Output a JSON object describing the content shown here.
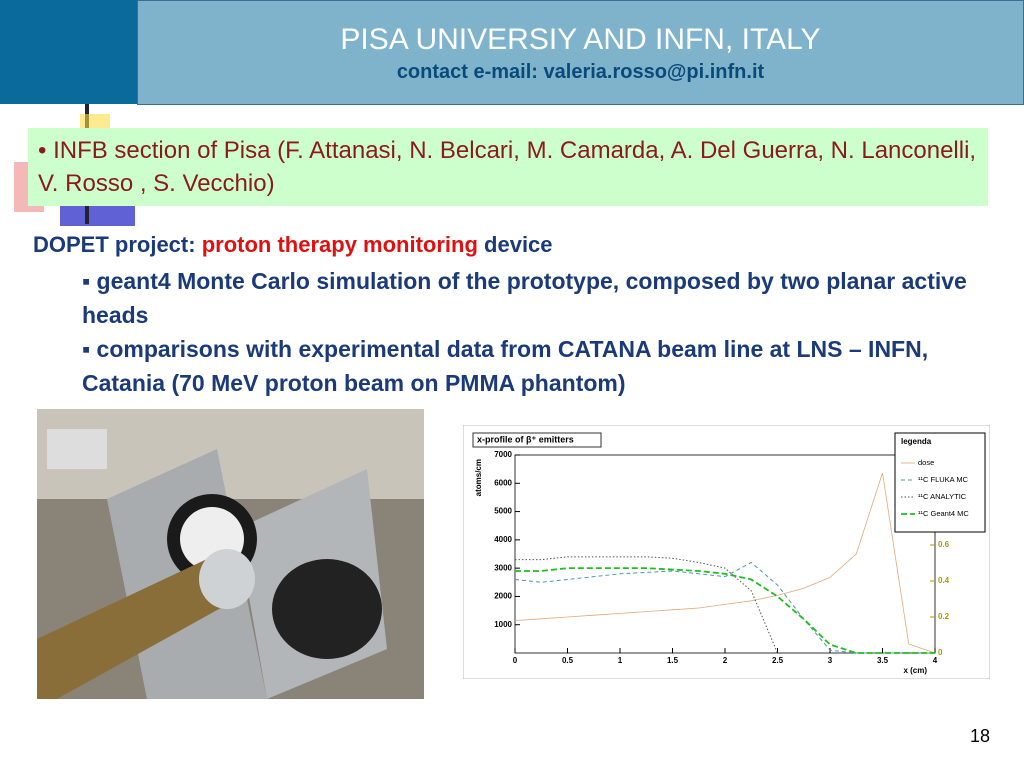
{
  "header": {
    "title": "PISA UNIVERSIY AND INFN, ITALY",
    "contact": "contact e-mail: valeria.rosso@pi.infn.it"
  },
  "box": {
    "text": "• INFB section of Pisa (F. Attanasi, N. Belcari, M. Camarda, A. Del Guerra, N. Lanconelli, V. Rosso , S. Vecchio)"
  },
  "project": {
    "lead": "DOPET project:",
    "highlight": "proton therapy monitoring",
    "tail": "device"
  },
  "bullets": [
    "▪ geant4 Monte Carlo simulation of the prototype, composed by two planar active heads",
    "▪ comparisons with experimental data from CATANA beam line at LNS – INFN, Catania (70 MeV proton beam on PMMA phantom)"
  ],
  "page_number": "18",
  "chart_data": {
    "type": "line",
    "title": "x-profile of β⁺ emitters",
    "x_label": "x (cm)",
    "y_label": "atoms/cm",
    "legend_title": "legenda",
    "legend": "upper right",
    "x": [
      0,
      0.25,
      0.5,
      0.75,
      1,
      1.25,
      1.5,
      1.75,
      2,
      2.25,
      2.5,
      2.75,
      3,
      3.25,
      3.5,
      3.75,
      4
    ],
    "xlim": [
      0,
      4
    ],
    "xticks": [
      0,
      0.5,
      1,
      1.5,
      2,
      2.5,
      3,
      3.5,
      4
    ],
    "ylim": [
      0,
      7000
    ],
    "yticks": [
      1000,
      2000,
      3000,
      4000,
      5000,
      6000,
      7000
    ],
    "y2lim": [
      0,
      1.1
    ],
    "y2ticks": [
      0,
      0.2,
      0.4,
      0.6
    ],
    "series": [
      {
        "name": "dose",
        "color": "#e0a878",
        "axis": "y2",
        "values": [
          0.18,
          0.19,
          0.2,
          0.21,
          0.22,
          0.23,
          0.24,
          0.25,
          0.27,
          0.29,
          0.32,
          0.36,
          0.42,
          0.55,
          1.0,
          0.05,
          0
        ]
      },
      {
        "name": "¹¹C FLUKA MC",
        "color": "#4a98a8",
        "values": [
          2600,
          2500,
          2600,
          2700,
          2800,
          2850,
          2900,
          2800,
          2700,
          3200,
          2400,
          1200,
          100,
          0,
          0,
          0,
          0
        ]
      },
      {
        "name": "¹¹C ANALYTIC",
        "color": "#555555",
        "values": [
          3300,
          3300,
          3400,
          3400,
          3400,
          3400,
          3350,
          3200,
          3000,
          2200,
          0,
          null,
          null,
          null,
          null,
          null,
          null
        ]
      },
      {
        "name": "¹¹C Geant4 MC",
        "color": "#22bb22",
        "values": [
          2900,
          2900,
          3000,
          3000,
          3000,
          3000,
          2950,
          2900,
          2800,
          2600,
          2000,
          1200,
          300,
          0,
          0,
          0,
          0
        ]
      }
    ]
  }
}
